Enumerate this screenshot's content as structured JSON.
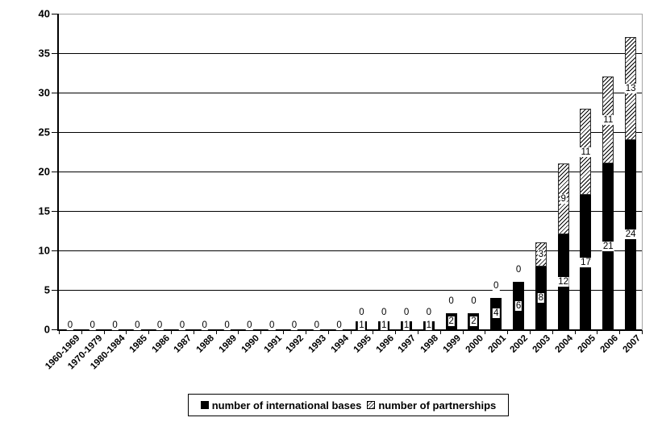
{
  "chart_data": {
    "type": "bar",
    "stacked": true,
    "orientation": "vertical",
    "title": "",
    "xlabel": "",
    "ylabel": "",
    "categories": [
      "1960-1969",
      "1970-1979",
      "1980-1984",
      "1985",
      "1986",
      "1987",
      "1988",
      "1989",
      "1990",
      "1991",
      "1992",
      "1993",
      "1994",
      "1995",
      "1996",
      "1997",
      "1998",
      "1999",
      "2000",
      "2001",
      "2002",
      "2003",
      "2004",
      "2005",
      "2006",
      "2007"
    ],
    "series": [
      {
        "name": "number of international bases",
        "pattern": "solid",
        "color": "#000000",
        "values": [
          0,
          0,
          0,
          0,
          0,
          0,
          0,
          0,
          0,
          0,
          0,
          0,
          0,
          1,
          1,
          1,
          1,
          2,
          2,
          4,
          6,
          8,
          12,
          17,
          21,
          24
        ]
      },
      {
        "name": "number of partnerships",
        "pattern": "diagonal-hatch",
        "color": "#ffffff",
        "hatch_color": "#000000",
        "values": [
          0,
          0,
          0,
          0,
          0,
          0,
          0,
          0,
          0,
          0,
          0,
          0,
          0,
          0,
          0,
          0,
          0,
          0,
          0,
          0,
          0,
          3,
          9,
          11,
          11,
          13
        ]
      }
    ],
    "ylim": [
      0,
      40
    ],
    "yticks": [
      0,
      5,
      10,
      15,
      20,
      25,
      30,
      35,
      40
    ],
    "grid": true,
    "data_labels": true,
    "legend_position": "bottom"
  },
  "colors": {
    "bar_fill": "#000000",
    "gridline": "#000000",
    "plot_border": "#a6a6a6",
    "background": "#ffffff",
    "text": "#000000"
  }
}
